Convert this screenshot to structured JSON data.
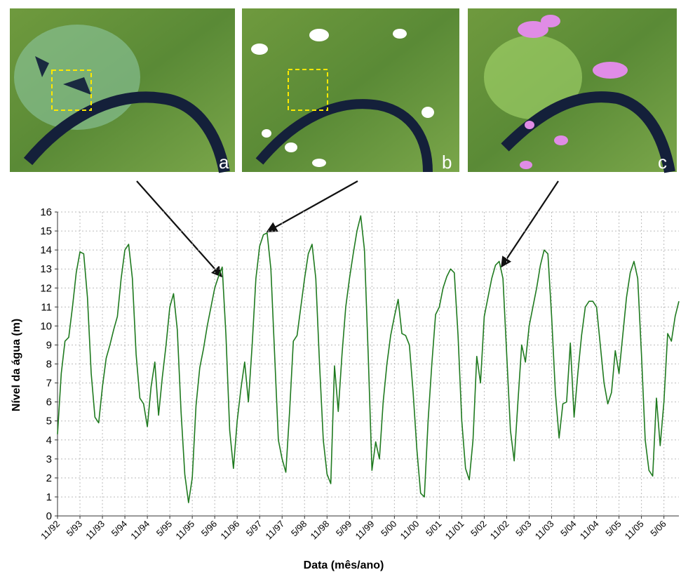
{
  "images": {
    "labels": [
      "a",
      "b",
      "c"
    ]
  },
  "chart_data": {
    "type": "line",
    "xlabel": "Data (mês/ano)",
    "ylabel": "Nível da água (m)",
    "color": "#1f7a1f",
    "grid": true,
    "xlim": [
      "1992-11",
      "2006-09"
    ],
    "ylim": [
      0,
      16
    ],
    "yticks": [
      0,
      1,
      2,
      3,
      4,
      5,
      6,
      7,
      8,
      9,
      10,
      11,
      12,
      13,
      14,
      15,
      16
    ],
    "xticks": [
      {
        "value": "1992-11",
        "label": "11/92"
      },
      {
        "value": "1993-05",
        "label": "5/93"
      },
      {
        "value": "1993-11",
        "label": "11/93"
      },
      {
        "value": "1994-05",
        "label": "5/94"
      },
      {
        "value": "1994-11",
        "label": "11/94"
      },
      {
        "value": "1995-05",
        "label": "5/95"
      },
      {
        "value": "1995-11",
        "label": "11/95"
      },
      {
        "value": "1996-05",
        "label": "5/96"
      },
      {
        "value": "1996-11",
        "label": "11/96"
      },
      {
        "value": "1997-05",
        "label": "5/97"
      },
      {
        "value": "1997-11",
        "label": "11/97"
      },
      {
        "value": "1998-05",
        "label": "5/98"
      },
      {
        "value": "1998-11",
        "label": "11/98"
      },
      {
        "value": "1999-05",
        "label": "5/99"
      },
      {
        "value": "1999-11",
        "label": "11/99"
      },
      {
        "value": "2000-05",
        "label": "5/00"
      },
      {
        "value": "2000-11",
        "label": "11/00"
      },
      {
        "value": "2001-05",
        "label": "5/01"
      },
      {
        "value": "2001-11",
        "label": "11/01"
      },
      {
        "value": "2002-05",
        "label": "5/02"
      },
      {
        "value": "2002-11",
        "label": "11/02"
      },
      {
        "value": "2003-05",
        "label": "5/03"
      },
      {
        "value": "2003-11",
        "label": "11/03"
      },
      {
        "value": "2004-05",
        "label": "5/04"
      },
      {
        "value": "2004-11",
        "label": "11/04"
      },
      {
        "value": "2005-05",
        "label": "5/05"
      },
      {
        "value": "2005-11",
        "label": "11/05"
      },
      {
        "value": "2006-05",
        "label": "5/06"
      }
    ],
    "x": [
      "1992-11",
      "1992-12",
      "1993-01",
      "1993-02",
      "1993-03",
      "1993-04",
      "1993-05",
      "1993-06",
      "1993-07",
      "1993-08",
      "1993-09",
      "1993-10",
      "1993-11",
      "1993-12",
      "1994-01",
      "1994-02",
      "1994-03",
      "1994-04",
      "1994-05",
      "1994-06",
      "1994-07",
      "1994-08",
      "1994-09",
      "1994-10",
      "1994-11",
      "1994-12",
      "1995-01",
      "1995-02",
      "1995-03",
      "1995-04",
      "1995-05",
      "1995-06",
      "1995-07",
      "1995-08",
      "1995-09",
      "1995-10",
      "1995-11",
      "1995-12",
      "1996-01",
      "1996-02",
      "1996-03",
      "1996-04",
      "1996-05",
      "1996-06",
      "1996-07",
      "1996-08",
      "1996-09",
      "1996-10",
      "1996-11",
      "1996-12",
      "1997-01",
      "1997-02",
      "1997-03",
      "1997-04",
      "1997-05",
      "1997-06",
      "1997-07",
      "1997-08",
      "1997-09",
      "1997-10",
      "1997-11",
      "1997-12",
      "1998-01",
      "1998-02",
      "1998-03",
      "1998-04",
      "1998-05",
      "1998-06",
      "1998-07",
      "1998-08",
      "1998-09",
      "1998-10",
      "1998-11",
      "1998-12",
      "1999-01",
      "1999-02",
      "1999-03",
      "1999-04",
      "1999-05",
      "1999-06",
      "1999-07",
      "1999-08",
      "1999-09",
      "1999-10",
      "1999-11",
      "1999-12",
      "2000-01",
      "2000-02",
      "2000-03",
      "2000-04",
      "2000-05",
      "2000-06",
      "2000-07",
      "2000-08",
      "2000-09",
      "2000-10",
      "2000-11",
      "2000-12",
      "2001-01",
      "2001-02",
      "2001-03",
      "2001-04",
      "2001-05",
      "2001-06",
      "2001-07",
      "2001-08",
      "2001-09",
      "2001-10",
      "2001-11",
      "2001-12",
      "2002-01",
      "2002-02",
      "2002-03",
      "2002-04",
      "2002-05",
      "2002-06",
      "2002-07",
      "2002-08",
      "2002-09",
      "2002-10",
      "2002-11",
      "2002-12",
      "2003-01",
      "2003-02",
      "2003-03",
      "2003-04",
      "2003-05",
      "2003-06",
      "2003-07",
      "2003-08",
      "2003-09",
      "2003-10",
      "2003-11",
      "2003-12",
      "2004-01",
      "2004-02",
      "2004-03",
      "2004-04",
      "2004-05",
      "2004-06",
      "2004-07",
      "2004-08",
      "2004-09",
      "2004-10",
      "2004-11",
      "2004-12",
      "2005-01",
      "2005-02",
      "2005-03",
      "2005-04",
      "2005-05",
      "2005-06",
      "2005-07",
      "2005-08",
      "2005-09",
      "2005-10",
      "2005-11",
      "2005-12",
      "2006-01",
      "2006-02",
      "2006-03",
      "2006-04",
      "2006-05",
      "2006-06",
      "2006-07",
      "2006-08",
      "2006-09"
    ],
    "values": [
      4.3,
      7.5,
      9.2,
      9.4,
      11.0,
      12.8,
      13.9,
      13.8,
      11.5,
      7.5,
      5.2,
      4.9,
      6.8,
      8.3,
      9.0,
      9.8,
      10.5,
      12.5,
      14.0,
      14.3,
      12.5,
      8.5,
      6.2,
      5.9,
      4.7,
      6.8,
      8.1,
      5.3,
      7.3,
      9.0,
      11.0,
      11.7,
      9.8,
      5.5,
      2.2,
      0.7,
      2.0,
      5.8,
      7.8,
      8.8,
      10.0,
      11.0,
      12.0,
      12.6,
      13.1,
      9.5,
      4.5,
      2.5,
      5.0,
      6.7,
      8.1,
      6.0,
      9.0,
      12.5,
      14.2,
      14.8,
      14.9,
      13.0,
      8.5,
      4.0,
      3.0,
      2.3,
      5.5,
      9.2,
      9.5,
      11.0,
      12.5,
      13.8,
      14.3,
      12.5,
      8.0,
      4.0,
      2.2,
      1.7,
      7.9,
      5.5,
      8.5,
      11.0,
      12.5,
      13.8,
      15.0,
      15.8,
      14.0,
      8.5,
      2.4,
      3.9,
      3.0,
      6.0,
      8.0,
      9.5,
      10.5,
      11.4,
      9.6,
      9.5,
      9.0,
      6.5,
      3.5,
      1.2,
      1.0,
      5.0,
      8.0,
      10.6,
      11.0,
      12.0,
      12.6,
      13.0,
      12.8,
      9.5,
      5.0,
      2.5,
      1.9,
      4.0,
      8.4,
      7.0,
      10.5,
      11.5,
      12.5,
      13.2,
      13.4,
      12.5,
      8.5,
      4.5,
      2.9,
      6.0,
      9.0,
      8.1,
      10.0,
      11.0,
      12.0,
      13.2,
      14.0,
      13.8,
      10.5,
      6.5,
      4.1,
      5.9,
      6.0,
      9.1,
      5.2,
      7.5,
      9.5,
      11.0,
      11.3,
      11.3,
      11.0,
      9.0,
      7.0,
      5.9,
      6.5,
      8.7,
      7.5,
      9.5,
      11.5,
      12.8,
      13.4,
      12.5,
      8.5,
      4.0,
      2.4,
      2.1,
      6.2,
      3.7,
      6.0,
      9.6,
      9.2,
      10.5,
      11.3
    ]
  }
}
